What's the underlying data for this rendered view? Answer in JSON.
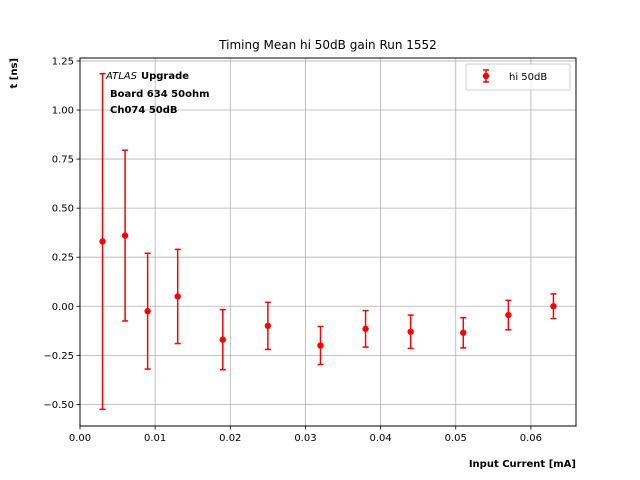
{
  "chart_data": {
    "type": "scatter",
    "title": "Timing Mean hi 50dB gain Run 1552",
    "xlabel": "Input Current [mA]",
    "ylabel": "t [ns]",
    "xlim": [
      0.0,
      0.066
    ],
    "ylim": [
      -0.61,
      1.265
    ],
    "xticks": [
      "0.00",
      "0.01",
      "0.02",
      "0.03",
      "0.04",
      "0.05",
      "0.06"
    ],
    "xtick_values": [
      0.0,
      0.01,
      0.02,
      0.03,
      0.04,
      0.05,
      0.06
    ],
    "yticks": [
      "−0.50",
      "−0.25",
      "0.00",
      "0.25",
      "0.50",
      "0.75",
      "1.00",
      "1.25"
    ],
    "ytick_values": [
      -0.5,
      -0.25,
      0.0,
      0.25,
      0.5,
      0.75,
      1.0,
      1.25
    ],
    "grid": true,
    "legend_position": "top-right",
    "annotation": {
      "atlas": "ATLAS",
      "upgrade": "Upgrade",
      "line2": "Board 634 50ohm",
      "line3": "Ch074 50dB"
    },
    "series": [
      {
        "name": "hi 50dB",
        "color": "#ff0000",
        "x": [
          0.003,
          0.006,
          0.009,
          0.013,
          0.019,
          0.025,
          0.032,
          0.038,
          0.044,
          0.051,
          0.057,
          0.063
        ],
        "y": [
          0.33,
          0.36,
          -0.025,
          0.05,
          -0.17,
          -0.1,
          -0.2,
          -0.115,
          -0.13,
          -0.135,
          -0.045,
          0.0
        ],
        "yerr": [
          0.855,
          0.435,
          0.295,
          0.24,
          0.153,
          0.12,
          0.097,
          0.093,
          0.085,
          0.077,
          0.075,
          0.063
        ]
      }
    ]
  }
}
